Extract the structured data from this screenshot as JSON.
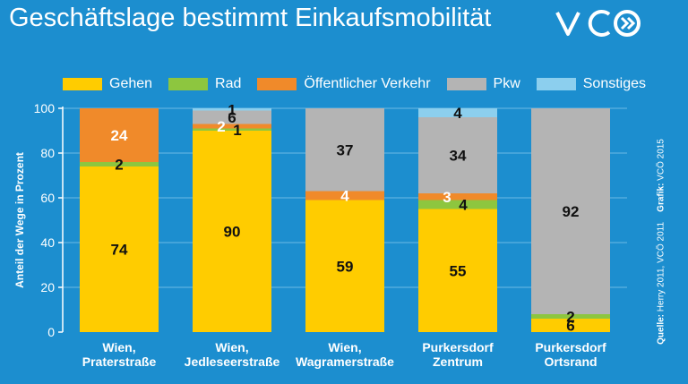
{
  "header": {
    "title": "Geschäftslage bestimmt Einkaufsmobilität",
    "logo_text": "VCÖ"
  },
  "source": {
    "prefix": "Quelle:",
    "text": "Herry 2011, VCÖ 2011",
    "grafik_prefix": "Grafik:",
    "grafik_text": "VCÖ 2015"
  },
  "colors": {
    "background": "#1c8ecf",
    "Gehen": "#ffcc00",
    "Rad": "#8dc63f",
    "Öffentlicher Verkehr": "#f08a2a",
    "Pkw": "#b4b4b4",
    "Sonstiges": "#8ccfee"
  },
  "chart_data": {
    "type": "bar",
    "stacked": true,
    "ylabel": "Anteil der Wege in Prozent",
    "xlabel": "",
    "ylim": [
      0,
      100
    ],
    "yticks": [
      0,
      20,
      40,
      60,
      80,
      100
    ],
    "grid": true,
    "legend": "top",
    "categories": [
      "Wien,\nPraterstraße",
      "Wien,\nJedleseerstraße",
      "Wien,\nWagramerstraße",
      "Purkersdorf\nZentrum",
      "Purkersdorf\nOrtsrand"
    ],
    "series": [
      {
        "name": "Gehen",
        "values": [
          74,
          90,
          59,
          55,
          6
        ]
      },
      {
        "name": "Rad",
        "values": [
          2,
          1,
          0,
          4,
          2
        ]
      },
      {
        "name": "Öffentlicher Verkehr",
        "values": [
          24,
          2,
          4,
          3,
          0
        ]
      },
      {
        "name": "Pkw",
        "values": [
          0,
          6,
          37,
          34,
          92
        ]
      },
      {
        "name": "Sonstiges",
        "values": [
          0,
          1,
          0,
          4,
          0
        ]
      }
    ]
  }
}
